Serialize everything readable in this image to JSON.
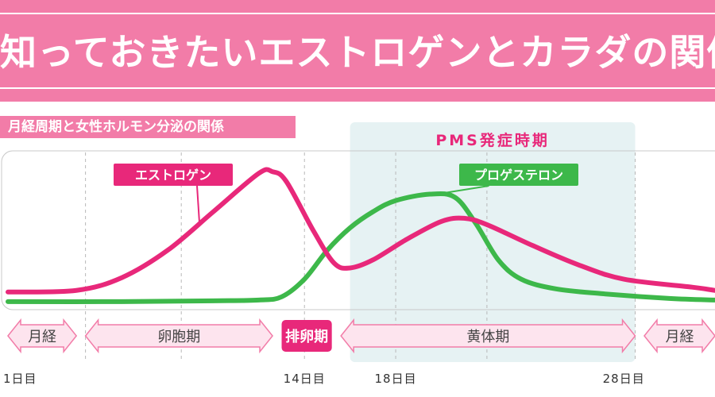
{
  "header": {
    "title": "知っておきたいエストロゲンとカラダの関係",
    "subtitle": "月経周期と女性ホルモン分泌の関係"
  },
  "colors": {
    "banner": "#f27ca8",
    "estrogen": "#e8287a",
    "progesterone": "#3db84a",
    "pms_zone": "#e6f2f3",
    "phase_arrow_fill": "#fde4ee",
    "phase_arrow_stroke": "#f27ca8",
    "ovulation_fill": "#e8287a"
  },
  "chart_data": {
    "type": "line",
    "title": "月経周期と女性ホルモン分泌の関係",
    "xlabel": "",
    "ylabel": "",
    "x_range": [
      1,
      32
    ],
    "y_range": [
      0,
      10
    ],
    "grid": "vertical-dashed",
    "x_tick_labels": [
      {
        "day": 1,
        "label": "1日目"
      },
      {
        "day": 14,
        "label": "14日目"
      },
      {
        "day": 18,
        "label": "18日目"
      },
      {
        "day": 28,
        "label": "28日目"
      }
    ],
    "shaded_region": {
      "label": "PMS発症時期",
      "from_day": 16,
      "to_day": 28.5
    },
    "series": [
      {
        "name": "エストロゲン",
        "color": "#e8287a",
        "points": [
          [
            1,
            1.2
          ],
          [
            4,
            1.3
          ],
          [
            6,
            2.1
          ],
          [
            8,
            3.8
          ],
          [
            10,
            6.2
          ],
          [
            12,
            8.6
          ],
          [
            12.6,
            8.7
          ],
          [
            13.2,
            8.1
          ],
          [
            14.4,
            5.0
          ],
          [
            15.3,
            3.0
          ],
          [
            16,
            2.7
          ],
          [
            17,
            3.2
          ],
          [
            18.5,
            4.5
          ],
          [
            20,
            5.6
          ],
          [
            21,
            5.8
          ],
          [
            22,
            5.4
          ],
          [
            24,
            4.1
          ],
          [
            26,
            2.9
          ],
          [
            28,
            2.0
          ],
          [
            31,
            1.5
          ],
          [
            32,
            1.3
          ]
        ]
      },
      {
        "name": "プロゲステロン",
        "color": "#3db84a",
        "points": [
          [
            1,
            0.6
          ],
          [
            6,
            0.6
          ],
          [
            10,
            0.65
          ],
          [
            12,
            0.7
          ],
          [
            13,
            0.9
          ],
          [
            14,
            2.0
          ],
          [
            15,
            3.8
          ],
          [
            16,
            5.2
          ],
          [
            17,
            6.2
          ],
          [
            18,
            6.9
          ],
          [
            19.5,
            7.3
          ],
          [
            20.6,
            7.1
          ],
          [
            21.5,
            5.5
          ],
          [
            22.5,
            3.2
          ],
          [
            23.5,
            2.0
          ],
          [
            25,
            1.4
          ],
          [
            27,
            1.1
          ],
          [
            30,
            0.8
          ],
          [
            32,
            0.7
          ]
        ]
      }
    ],
    "phases": [
      {
        "label": "月経",
        "from_day": 1,
        "to_day": 4
      },
      {
        "label": "卵胞期",
        "from_day": 4.4,
        "to_day": 12.6
      },
      {
        "label": "排卵期",
        "from_day": 13,
        "to_day": 15.2,
        "highlight": true
      },
      {
        "label": "黄体期",
        "from_day": 15.6,
        "to_day": 28.5
      },
      {
        "label": "月経",
        "from_day": 28.9,
        "to_day": 32
      }
    ]
  }
}
